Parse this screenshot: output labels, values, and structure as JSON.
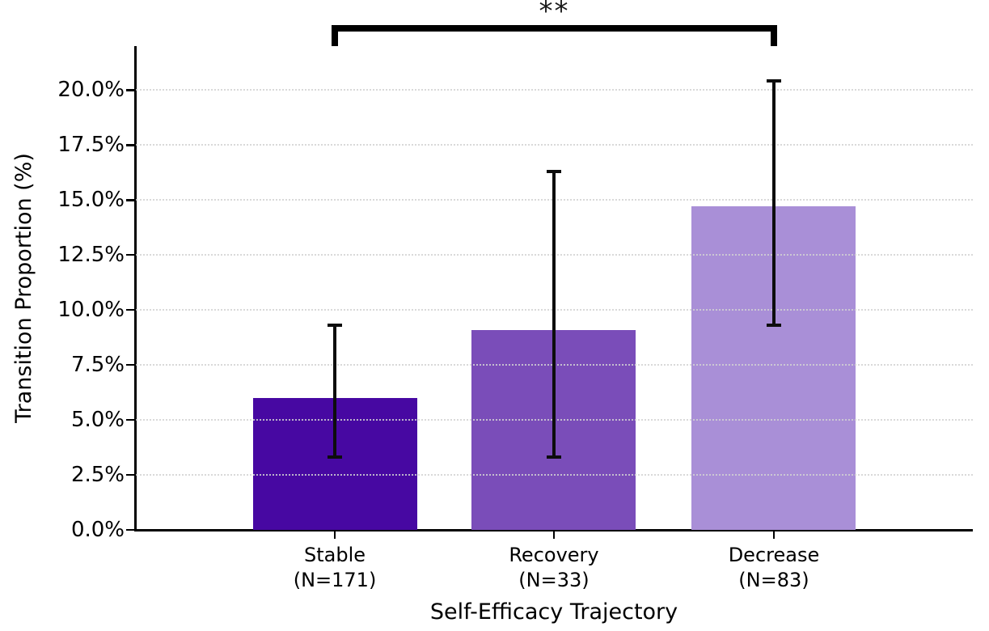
{
  "chart_data": {
    "type": "bar",
    "title": "",
    "xlabel": "Self-Efficacy Trajectory",
    "ylabel": "Transition Proportion (%)",
    "categories": [
      "Stable",
      "Recovery",
      "Decrease"
    ],
    "category_sublabels": [
      "(N=171)",
      "(N=33)",
      "(N=83)"
    ],
    "series": [
      {
        "name": "Transition Proportion",
        "values": [
          6.0,
          9.1,
          14.7
        ],
        "error_low": [
          3.3,
          3.3,
          9.3
        ],
        "error_high": [
          9.3,
          16.3,
          20.4
        ]
      }
    ],
    "bar_colors": [
      "#4708A2",
      "#7A4DB9",
      "#A98FD7"
    ],
    "ytick_labels": [
      "0.0%",
      "2.5%",
      "5.0%",
      "7.5%",
      "10.0%",
      "12.5%",
      "15.0%",
      "17.5%",
      "20.0%"
    ],
    "ytick_values": [
      0,
      2.5,
      5,
      7.5,
      10,
      12.5,
      15,
      17.5,
      20
    ],
    "ylim": [
      0,
      22
    ],
    "grid": "horizontal-dotted",
    "legend": "none",
    "annotations": {
      "significance": {
        "label": "**",
        "from_category": "Stable",
        "to_category": "Decrease"
      }
    }
  },
  "colors": {
    "background": "#ffffff",
    "axis": "#000000",
    "errorbar": "#0d0d0d",
    "grid": "#d2d2d2"
  }
}
